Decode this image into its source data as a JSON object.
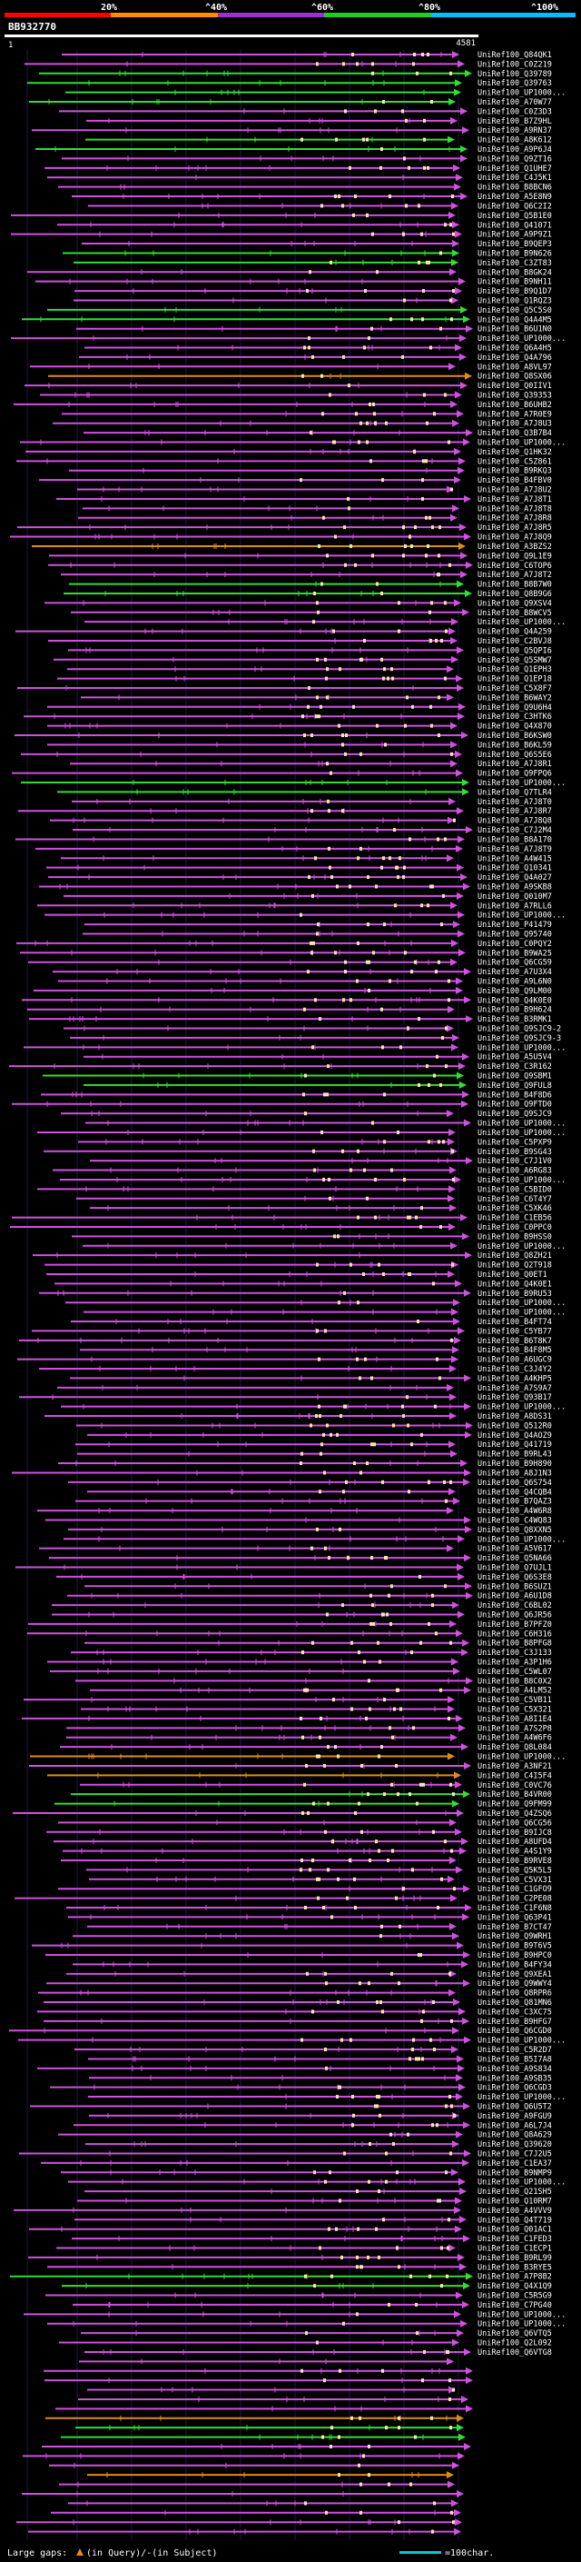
{
  "chart_data": {
    "type": "alignment-overview",
    "query_id": "BB932770",
    "scale": {
      "start_label": "1",
      "end_label": "4581"
    },
    "identity_legend": {
      "labels": [
        "20%",
        "^40%",
        "^60%",
        "^80%",
        "^100%"
      ],
      "colors": [
        "#ff0000",
        "#ff8c00",
        "#9932cc",
        "#22cc22",
        "#00bfff"
      ]
    },
    "hit_color_default": "#d050e0",
    "footer": {
      "large_gaps_label": "Large gaps:",
      "gaps_text": "(in Query)/-(in Subject)",
      "scale_note": "=100char."
    },
    "hits_visible_first": [
      "UniRef100_Q84QK1",
      "UniRef100_C0Z219",
      "UniRef100_Q39789",
      "UniRef100_Q39763",
      "UniRef100_UP1000...",
      "UniRef100_A70W77",
      "UniRef100_C0Z3D3",
      "UniRef100_B7Z9HL",
      "UniRef100_A9RN37",
      "UniRef100_A8K612",
      "UniRef100_A9P6J4",
      "UniRef100_Q9ZT16",
      "UniRef100_Q1UHE7",
      "UniRef100_C4J5K1",
      "UniRef100_B8BCN6",
      "UniRef100_A5E8N9",
      "UniRef100_Q6C2I2",
      "UniRef100_Q5B1E0",
      "UniRef100_Q41071",
      "UniRef100_A9P9Z1",
      "UniRef100_B9QEP3",
      "UniRef100_B9N626",
      "UniRef100_C3ZT83",
      "UniRef100_B8GK24",
      "UniRef100_B9NH11",
      "UniRef100_B9Q1D7",
      "UniRef100_Q1RQZ3",
      "UniRef100_Q5C5S0",
      "UniRef100_Q4A4M5",
      "UniRef100_B6U1N0",
      "UniRef100_UP1000...",
      "UniRef100_Q6A4H5",
      "UniRef100_Q4A796",
      "UniRef100_A8VL97",
      "UniRef100_Q8SX06",
      "UniRef100_Q0IIV1",
      "UniRef100_Q39353",
      "UniRef100_B6UHB2",
      "UniRef100_A7R0E9",
      "UniRef100_A7J8U3",
      "UniRef100_Q3B7B4",
      "UniRef100_UP1000...",
      "UniRef100_Q1HK32",
      "UniRef100_C5Z861",
      "UniRef100_B9RKQ3",
      "UniRef100_B4FBV0",
      "UniRef100_A7J8U2",
      "UniRef100_A7J8T1",
      "UniRef100_A7J8T8",
      "UniRef100_A7J8R8",
      "UniRef100_A7J8R5",
      "UniRef100_A7J8Q9",
      "UniRef100_A3BZS2",
      "UniRef100_Q9L1E9",
      "UniRef100_C6TOP6",
      "UniRef100_A7J8T2",
      "UniRef100_B8B7W0",
      "UniRef100_Q8B9G6",
      "UniRef100_Q9XSV4",
      "UniRef100_B8WCV5",
      "UniRef100_UP1000...",
      "UniRef100_Q4A259",
      "UniRef100_C2BVJ8",
      "UniRef100_Q5QPI6",
      "UniRef100_Q5SMW7",
      "UniRef100_Q1EPH3",
      "UniRef100_Q1EP18",
      "UniRef100_C5X8F7",
      "UniRef100_B6WAY2",
      "UniRef100_Q9U6H4",
      "UniRef100_C3HTK6",
      "UniRef100_Q4X870",
      "UniRef100_B6KSW0",
      "UniRef100_B6KL59",
      "UniRef100_Q6S5E6",
      "UniRef100_A7J8R1",
      "UniRef100_Q9FPQ6",
      "UniRef100_UP1000...",
      "UniRef100_Q7TLR4",
      "UniRef100_A7J8T0",
      "UniRef100_A7J8R7",
      "UniRef100_A7J8Q8",
      "UniRef100_C7J2M4",
      "UniRef100_B8A170",
      "UniRef100_A7J8T9",
      "UniRef100_A4W415",
      "UniRef100_Q10341",
      "UniRef100_Q4A027",
      "UniRef100_A9SKB8",
      "UniRef100_Q010M7",
      "UniRef100_A7RLL6",
      "UniRef100_UP1000...",
      "UniRef100_P41479",
      "UniRef100_Q95740",
      "UniRef100_C0PQY2",
      "UniRef100_B9WA25",
      "UniRef100_Q6CG59",
      "UniRef100_A7U3X4",
      "UniRef100_A9L6N0",
      "UniRef100_Q9LM00",
      "UniRef100_Q4K0E0",
      "UniRef100_B9H624",
      "UniRef100_B3RMK1",
      "UniRef100_Q9SJC9-2",
      "UniRef100_Q9SJC9-3",
      "UniRef100_UP1000...",
      "UniRef100_A5U5V4",
      "UniRef100_C3R162",
      "UniRef100_Q9SBM1",
      "UniRef100_Q9FUL8",
      "UniRef100_B4F8D6",
      "UniRef100_Q9FTD0",
      "UniRef100_Q9SJC9",
      "UniRef100_UP1000...",
      "UniRef100_UP1000...",
      "UniRef100_C5PXP9",
      "UniRef100_B9SG43",
      "UniRef100_C7J1V0",
      "UniRef100_A6RG83",
      "UniRef100_UP1000...",
      "UniRef100_C5BID0",
      "UniRef100_C6T4Y7",
      "UniRef100_C5XK46",
      "UniRef100_C1EB56",
      "UniRef100_C0PPC0",
      "UniRef100_B9HSS0",
      "UniRef100_UP1000...",
      "UniRef100_Q8ZH21",
      "UniRef100_Q2T918",
      "UniRef100_Q0ET1",
      "UniRef100_Q4K0E1",
      "UniRef100_B9RU53",
      "UniRef100_UP1000...",
      "UniRef100_UP1000...",
      "UniRef100_B4FT74",
      "UniRef100_C5YB77",
      "UniRef100_B6T8K7",
      "UniRef100_B4F8M5",
      "UniRef100_A6UGC9",
      "UniRef100_C3J4Y2",
      "UniRef100_A4KHP5",
      "UniRef100_A7S9A7",
      "UniRef100_Q93B17",
      "UniRef100_UP1000...",
      "UniRef100_A8DS31",
      "UniRef100_Q512R0",
      "UniRef100_Q4AOZ9",
      "UniRef100_Q41719",
      "UniRef100_B9RL43",
      "UniRef100_B9H890",
      "UniRef100_A8J1N3",
      "UniRef100_Q6S754",
      "UniRef100_Q4CQB4",
      "UniRef100_B7QAZ3",
      "UniRef100_A4W6R8",
      "UniRef100_C4WQ83",
      "UniRef100_Q8XXN5",
      "UniRef100_UP1000...",
      "UniRef100_A5V617",
      "UniRef100_Q5NA66",
      "UniRef100_Q7UJL1",
      "UniRef100_Q6S3E8",
      "UniRef100_B6SUZ1",
      "UniRef100_A6U1D8",
      "UniRef100_C6BL02",
      "UniRef100_Q6JR56",
      "UniRef100_B7PFZ0",
      "UniRef100_C6H316",
      "UniRef100_B8PFG8",
      "UniRef100_C3J133",
      "UniRef100_A3P1H6",
      "UniRef100_C5WL07",
      "UniRef100_B8C0X2",
      "UniRef100_A4LM52",
      "UniRef100_C5VB11",
      "UniRef100_C5X321",
      "UniRef100_A8I1E4",
      "UniRef100_A7S2P8",
      "UniRef100_A4W6F6",
      "UniRef100_Q8L084",
      "UniRef100_UP1000...",
      "UniRef100_A3NF21",
      "UniRef100_C4I5F4",
      "UniRef100_C0VC76",
      "UniRef100_B4VR00",
      "UniRef100_Q9FM99",
      "UniRef100_Q4ZSQ6",
      "UniRef100_Q6CG56",
      "UniRef100_B9IJC8",
      "UniRef100_A8UFD4",
      "UniRef100_A4S1Y9",
      "UniRef100_B9RVE8",
      "UniRef100_Q5K5L5",
      "UniRef100_C5VX31",
      "UniRef100_C1GFO9",
      "UniRef100_C2PE08",
      "UniRef100_C1F6N8",
      "UniRef100_Q63P41",
      "UniRef100_B7CT47",
      "UniRef100_Q9WRH1",
      "UniRef100_B9T6V5",
      "UniRef100_B9HPC0",
      "UniRef100_B4FY34",
      "UniRef100_Q9XEA1",
      "UniRef100_Q9WWY4",
      "UniRef100_Q8RPR6",
      "UniRef100_Q81MN6",
      "UniRef100_C3XC75",
      "UniRef100_B9HFG7",
      "UniRef100_Q6CGD0",
      "UniRef100_UP1000...",
      "UniRef100_C5R2D7",
      "UniRef100_B5I7A8",
      "UniRef100_A9S834",
      "UniRef100_A9SB35",
      "UniRef100_Q6CGD3",
      "UniRef100_UP1000...",
      "UniRef100_Q6U5T2",
      "UniRef100_A9FGU9",
      "UniRef100_A6L7J4",
      "UniRef100_Q8A629",
      "UniRef100_Q39620",
      "UniRef100_C7J2U5",
      "UniRef100_C1EA37",
      "UniRef100_B9NMP9",
      "UniRef100_UP1000...",
      "UniRef100_Q21SH5",
      "UniRef100_Q10RM7",
      "UniRef100_A4VVV9",
      "UniRef100_Q4T719",
      "UniRef100_Q01AC1",
      "UniRef100_C1FED3",
      "UniRef100_C1ECP1",
      "UniRef100_B9RL99",
      "UniRef100_B3RYE5",
      "UniRef100_A7P8B2",
      "UniRef100_Q4X1Q9",
      "UniRef100_C5R5G9",
      "UniRef100_C7PG40",
      "UniRef100_UP1000...",
      "UniRef100_UP1000...",
      "UniRef100_Q6VTQ5",
      "UniRef100_Q2L092",
      "UniRef100_Q6VTG8"
    ]
  }
}
